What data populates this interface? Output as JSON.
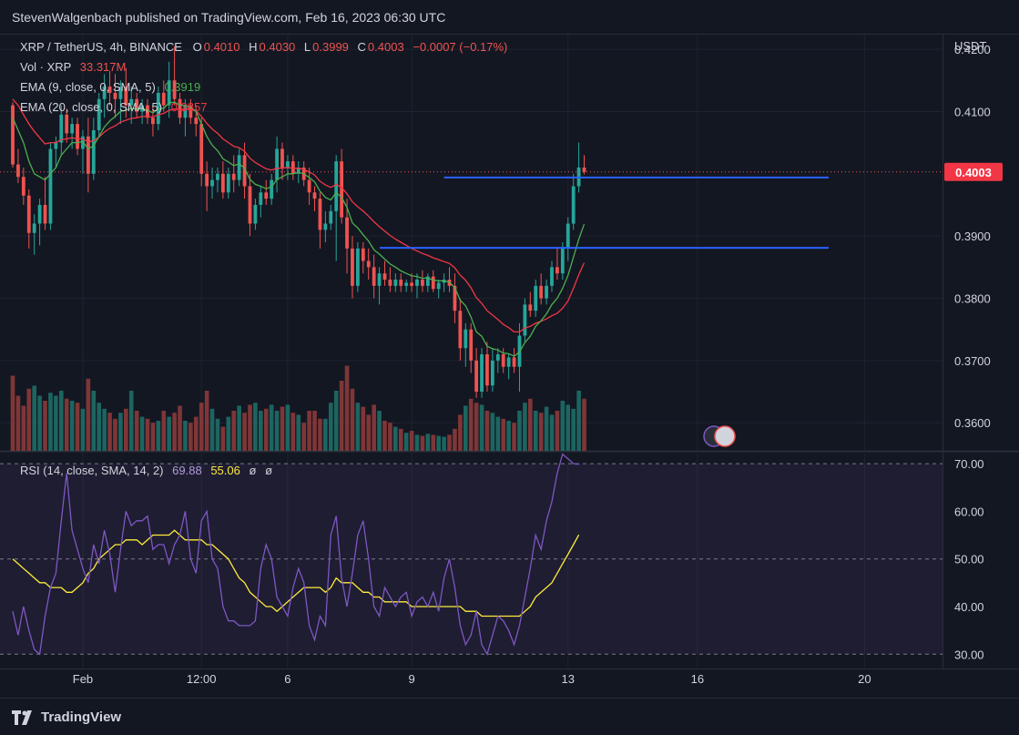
{
  "header": {
    "published": "StevenWalgenbach published on TradingView.com, Feb 16, 2023 06:30 UTC"
  },
  "legend": {
    "symbol": "XRP / TetherUS, 4h, BINANCE",
    "o_label": "O",
    "o": "0.4010",
    "h_label": "H",
    "h": "0.4030",
    "l_label": "L",
    "l": "0.3999",
    "c_label": "C",
    "c": "0.4003",
    "change": "−0.0007 (−0.17%)",
    "vol_label": "Vol · XRP",
    "vol": "33.317M",
    "ema9_label": "EMA (9, close, 0, SMA, 5)",
    "ema9": "0.3919",
    "ema20_label": "EMA (20, close, 0, SMA, 5)",
    "ema20": "0.3857",
    "rsi_label": "RSI (14, close, SMA, 14, 2)",
    "rsi": "69.88",
    "rsi_ma": "55.06",
    "rsi_x1": "ø",
    "rsi_x2": "ø"
  },
  "colors": {
    "up": "#26a69a",
    "down": "#ef5350",
    "ema9": "#4caf50",
    "ema20": "#f23645",
    "rsi": "#7e57c2",
    "rsi_ma": "#ffeb3b",
    "hline": "#2962ff",
    "bg": "#131722"
  },
  "footer": {
    "brand": "TradingView"
  },
  "chart_data": [
    {
      "type": "candlestick",
      "title": "XRP / TetherUS, 4h, BINANCE",
      "ylabel": "USDT",
      "ylim": [
        0.3555,
        0.4225
      ],
      "yticks": [
        "0.4200",
        "0.4100",
        "0.3900",
        "0.3800",
        "0.3700",
        "0.3600"
      ],
      "xticks": [
        "Feb",
        "12:00",
        "6",
        "9",
        "13",
        "16",
        "20"
      ],
      "last_price": "0.4003",
      "last_price_value": 0.4003,
      "support_resistance": [
        0.3994,
        0.3881
      ],
      "ohlc": [
        [
          0.411,
          0.4115,
          0.401,
          0.4015
        ],
        [
          0.4015,
          0.404,
          0.3985,
          0.3995
        ],
        [
          0.3995,
          0.401,
          0.395,
          0.3965
        ],
        [
          0.3965,
          0.3975,
          0.388,
          0.3905
        ],
        [
          0.3905,
          0.3935,
          0.387,
          0.392
        ],
        [
          0.392,
          0.396,
          0.3885,
          0.395
        ],
        [
          0.395,
          0.3995,
          0.391,
          0.392
        ],
        [
          0.392,
          0.405,
          0.391,
          0.404
        ],
        [
          0.404,
          0.406,
          0.401,
          0.405
        ],
        [
          0.405,
          0.411,
          0.403,
          0.4095
        ],
        [
          0.4095,
          0.4105,
          0.405,
          0.4065
        ],
        [
          0.4065,
          0.409,
          0.404,
          0.408
        ],
        [
          0.408,
          0.409,
          0.403,
          0.404
        ],
        [
          0.404,
          0.407,
          0.4,
          0.406
        ],
        [
          0.406,
          0.409,
          0.397,
          0.4
        ],
        [
          0.4,
          0.409,
          0.399,
          0.407
        ],
        [
          0.407,
          0.413,
          0.406,
          0.412
        ],
        [
          0.412,
          0.416,
          0.409,
          0.414
        ],
        [
          0.414,
          0.4165,
          0.411,
          0.413
        ],
        [
          0.413,
          0.416,
          0.409,
          0.412
        ],
        [
          0.412,
          0.415,
          0.408,
          0.414
        ],
        [
          0.414,
          0.417,
          0.409,
          0.411
        ],
        [
          0.411,
          0.414,
          0.408,
          0.412
        ],
        [
          0.412,
          0.413,
          0.409,
          0.41
        ],
        [
          0.41,
          0.412,
          0.408,
          0.411
        ],
        [
          0.411,
          0.412,
          0.408,
          0.409
        ],
        [
          0.409,
          0.411,
          0.406,
          0.408
        ],
        [
          0.408,
          0.414,
          0.407,
          0.413
        ],
        [
          0.413,
          0.415,
          0.41,
          0.411
        ],
        [
          0.411,
          0.418,
          0.409,
          0.415
        ],
        [
          0.415,
          0.4205,
          0.411,
          0.412
        ],
        [
          0.412,
          0.413,
          0.408,
          0.409
        ],
        [
          0.409,
          0.412,
          0.406,
          0.411
        ],
        [
          0.411,
          0.412,
          0.408,
          0.409
        ],
        [
          0.409,
          0.411,
          0.406,
          0.408
        ],
        [
          0.408,
          0.409,
          0.398,
          0.4
        ],
        [
          0.4,
          0.402,
          0.394,
          0.398
        ],
        [
          0.398,
          0.401,
          0.396,
          0.399
        ],
        [
          0.399,
          0.401,
          0.397,
          0.4
        ],
        [
          0.4,
          0.402,
          0.396,
          0.397
        ],
        [
          0.397,
          0.401,
          0.396,
          0.4
        ],
        [
          0.4,
          0.403,
          0.397,
          0.399
        ],
        [
          0.399,
          0.404,
          0.398,
          0.403
        ],
        [
          0.403,
          0.405,
          0.396,
          0.398
        ],
        [
          0.398,
          0.4,
          0.39,
          0.392
        ],
        [
          0.392,
          0.396,
          0.391,
          0.395
        ],
        [
          0.395,
          0.398,
          0.393,
          0.397
        ],
        [
          0.397,
          0.399,
          0.395,
          0.396
        ],
        [
          0.396,
          0.4,
          0.395,
          0.399
        ],
        [
          0.399,
          0.406,
          0.397,
          0.404
        ],
        [
          0.404,
          0.405,
          0.399,
          0.401
        ],
        [
          0.401,
          0.403,
          0.399,
          0.402
        ],
        [
          0.402,
          0.403,
          0.399,
          0.4
        ],
        [
          0.4,
          0.402,
          0.3985,
          0.401
        ],
        [
          0.401,
          0.402,
          0.398,
          0.399
        ],
        [
          0.399,
          0.401,
          0.395,
          0.397
        ],
        [
          0.397,
          0.398,
          0.394,
          0.396
        ],
        [
          0.396,
          0.397,
          0.388,
          0.391
        ],
        [
          0.391,
          0.394,
          0.389,
          0.392
        ],
        [
          0.392,
          0.395,
          0.391,
          0.394
        ],
        [
          0.394,
          0.403,
          0.386,
          0.402
        ],
        [
          0.402,
          0.404,
          0.392,
          0.393
        ],
        [
          0.393,
          0.396,
          0.384,
          0.388
        ],
        [
          0.388,
          0.39,
          0.38,
          0.382
        ],
        [
          0.382,
          0.389,
          0.381,
          0.388
        ],
        [
          0.388,
          0.389,
          0.384,
          0.386
        ],
        [
          0.386,
          0.388,
          0.383,
          0.385
        ],
        [
          0.385,
          0.387,
          0.38,
          0.382
        ],
        [
          0.382,
          0.385,
          0.379,
          0.384
        ],
        [
          0.384,
          0.386,
          0.382,
          0.383
        ],
        [
          0.383,
          0.385,
          0.381,
          0.382
        ],
        [
          0.382,
          0.384,
          0.381,
          0.383
        ],
        [
          0.383,
          0.384,
          0.381,
          0.382
        ],
        [
          0.382,
          0.383,
          0.381,
          0.3825
        ],
        [
          0.3825,
          0.384,
          0.381,
          0.382
        ],
        [
          0.382,
          0.384,
          0.38,
          0.383
        ],
        [
          0.383,
          0.3845,
          0.381,
          0.382
        ],
        [
          0.382,
          0.384,
          0.381,
          0.3835
        ],
        [
          0.3835,
          0.3845,
          0.381,
          0.3815
        ],
        [
          0.3815,
          0.383,
          0.38,
          0.3825
        ],
        [
          0.3825,
          0.384,
          0.381,
          0.383
        ],
        [
          0.383,
          0.385,
          0.381,
          0.382
        ],
        [
          0.382,
          0.384,
          0.376,
          0.378
        ],
        [
          0.378,
          0.38,
          0.37,
          0.372
        ],
        [
          0.372,
          0.376,
          0.369,
          0.375
        ],
        [
          0.375,
          0.376,
          0.368,
          0.37
        ],
        [
          0.37,
          0.372,
          0.364,
          0.365
        ],
        [
          0.365,
          0.372,
          0.364,
          0.371
        ],
        [
          0.371,
          0.373,
          0.365,
          0.366
        ],
        [
          0.366,
          0.372,
          0.365,
          0.37
        ],
        [
          0.37,
          0.372,
          0.368,
          0.371
        ],
        [
          0.371,
          0.372,
          0.368,
          0.369
        ],
        [
          0.369,
          0.371,
          0.367,
          0.3705
        ],
        [
          0.3705,
          0.372,
          0.368,
          0.369
        ],
        [
          0.369,
          0.376,
          0.365,
          0.374
        ],
        [
          0.374,
          0.38,
          0.373,
          0.379
        ],
        [
          0.379,
          0.381,
          0.377,
          0.378
        ],
        [
          0.378,
          0.383,
          0.377,
          0.382
        ],
        [
          0.382,
          0.384,
          0.379,
          0.38
        ],
        [
          0.38,
          0.383,
          0.379,
          0.382
        ],
        [
          0.382,
          0.386,
          0.381,
          0.385
        ],
        [
          0.385,
          0.388,
          0.383,
          0.384
        ],
        [
          0.384,
          0.389,
          0.383,
          0.388
        ],
        [
          0.388,
          0.393,
          0.386,
          0.392
        ],
        [
          0.392,
          0.4,
          0.391,
          0.398
        ],
        [
          0.398,
          0.405,
          0.397,
          0.401
        ],
        [
          0.401,
          0.403,
          0.3999,
          0.4003
        ]
      ],
      "ema9": [
        0.409,
        0.407,
        0.405,
        0.402,
        0.4,
        0.3995,
        0.399,
        0.4,
        0.401,
        0.403,
        0.404,
        0.405,
        0.405,
        0.4052,
        0.404,
        0.4045,
        0.406,
        0.4075,
        0.4085,
        0.4092,
        0.41,
        0.4102,
        0.4105,
        0.4104,
        0.4105,
        0.4102,
        0.4098,
        0.4104,
        0.4105,
        0.4114,
        0.4115,
        0.411,
        0.411,
        0.4106,
        0.41,
        0.408,
        0.406,
        0.4046,
        0.4037,
        0.4024,
        0.4019,
        0.4013,
        0.4016,
        0.4009,
        0.3991,
        0.3983,
        0.398,
        0.3976,
        0.3979,
        0.3991,
        0.3995,
        0.4,
        0.4,
        0.4002,
        0.4,
        0.3994,
        0.3987,
        0.3972,
        0.3962,
        0.3958,
        0.397,
        0.3962,
        0.3946,
        0.3921,
        0.3913,
        0.3902,
        0.3892,
        0.3878,
        0.3871,
        0.3863,
        0.3855,
        0.385,
        0.3844,
        0.384,
        0.3836,
        0.3835,
        0.3832,
        0.3833,
        0.3829,
        0.3828,
        0.3828,
        0.3826,
        0.3817,
        0.3797,
        0.3788,
        0.377,
        0.3746,
        0.3739,
        0.3723,
        0.3719,
        0.3717,
        0.3712,
        0.3711,
        0.3707,
        0.3714,
        0.3729,
        0.3739,
        0.3755,
        0.3764,
        0.3775,
        0.379,
        0.38,
        0.3816,
        0.3837,
        0.3866,
        0.3895,
        0.3919
      ],
      "ema20": [
        0.412,
        0.411,
        0.4095,
        0.408,
        0.4068,
        0.4058,
        0.4048,
        0.405,
        0.405,
        0.4055,
        0.4056,
        0.4058,
        0.4056,
        0.4056,
        0.4051,
        0.4053,
        0.4059,
        0.4067,
        0.4073,
        0.4077,
        0.4083,
        0.4086,
        0.4089,
        0.409,
        0.4092,
        0.4092,
        0.4091,
        0.4095,
        0.4097,
        0.4102,
        0.4104,
        0.4103,
        0.4104,
        0.4103,
        0.4101,
        0.4092,
        0.4081,
        0.4072,
        0.4065,
        0.4056,
        0.405,
        0.4044,
        0.4042,
        0.4036,
        0.4025,
        0.4018,
        0.4013,
        0.4008,
        0.4006,
        0.4009,
        0.4009,
        0.401,
        0.4009,
        0.4009,
        0.4007,
        0.4003,
        0.3998,
        0.3988,
        0.3982,
        0.3978,
        0.3983,
        0.3978,
        0.3968,
        0.3955,
        0.3947,
        0.394,
        0.3932,
        0.3923,
        0.3915,
        0.3908,
        0.3901,
        0.3895,
        0.389,
        0.3885,
        0.388,
        0.3876,
        0.3872,
        0.3869,
        0.3865,
        0.3862,
        0.3859,
        0.3856,
        0.3849,
        0.3837,
        0.3829,
        0.3817,
        0.3801,
        0.3792,
        0.378,
        0.3773,
        0.3766,
        0.3758,
        0.3753,
        0.3746,
        0.3746,
        0.3752,
        0.3755,
        0.376,
        0.3763,
        0.3767,
        0.3772,
        0.3776,
        0.3784,
        0.3796,
        0.3816,
        0.3838,
        0.3857
      ],
      "volume_relative": [
        0.75,
        0.55,
        0.45,
        0.62,
        0.65,
        0.55,
        0.5,
        0.58,
        0.55,
        0.6,
        0.52,
        0.5,
        0.48,
        0.42,
        0.72,
        0.6,
        0.48,
        0.42,
        0.38,
        0.32,
        0.38,
        0.42,
        0.6,
        0.4,
        0.34,
        0.32,
        0.28,
        0.3,
        0.4,
        0.34,
        0.38,
        0.45,
        0.3,
        0.28,
        0.34,
        0.48,
        0.6,
        0.42,
        0.32,
        0.24,
        0.34,
        0.4,
        0.45,
        0.38,
        0.46,
        0.48,
        0.4,
        0.42,
        0.46,
        0.4,
        0.44,
        0.46,
        0.38,
        0.36,
        0.28,
        0.4,
        0.4,
        0.32,
        0.32,
        0.48,
        0.6,
        0.7,
        0.85,
        0.62,
        0.48,
        0.44,
        0.36,
        0.46,
        0.4,
        0.3,
        0.28,
        0.24,
        0.22,
        0.18,
        0.2,
        0.16,
        0.15,
        0.17,
        0.16,
        0.15,
        0.14,
        0.16,
        0.22,
        0.36,
        0.45,
        0.52,
        0.48,
        0.46,
        0.4,
        0.38,
        0.34,
        0.32,
        0.3,
        0.28,
        0.4,
        0.48,
        0.52,
        0.4,
        0.38,
        0.44,
        0.36,
        0.4,
        0.5,
        0.46,
        0.42,
        0.6,
        0.52
      ]
    },
    {
      "type": "line",
      "title": "RSI (14, close, SMA, 14, 2)",
      "ylim": [
        27,
        72.5
      ],
      "yticks": [
        "70.00",
        "60.00",
        "50.00",
        "40.00",
        "30.00"
      ],
      "bands": [
        70,
        50,
        30
      ],
      "rsi": [
        39,
        34,
        40,
        35,
        31,
        30,
        38,
        44,
        47,
        58,
        68,
        56,
        52,
        48,
        45,
        53,
        49,
        56,
        51,
        43,
        52,
        60,
        57,
        58,
        58,
        59,
        52,
        53,
        53,
        49,
        53,
        55,
        60,
        50,
        47,
        58,
        60,
        50,
        48,
        40,
        37,
        37,
        36,
        36,
        36,
        37,
        48,
        53,
        50,
        42,
        40,
        38,
        44,
        48,
        45,
        36,
        33,
        38,
        36,
        55,
        59,
        46,
        40,
        47,
        55,
        58,
        50,
        40,
        38,
        44,
        42,
        40,
        42,
        43,
        38,
        41,
        42,
        40,
        43,
        39,
        46,
        50,
        44,
        36,
        32,
        34,
        39,
        32,
        30,
        34,
        38,
        37,
        35,
        32,
        36,
        42,
        48,
        55,
        52,
        58,
        62,
        68,
        72,
        71,
        70,
        69.88
      ],
      "rsi_ma": [
        50,
        49,
        48,
        47,
        46,
        45,
        45,
        44,
        44,
        44,
        43,
        43,
        44,
        45,
        47,
        48,
        50,
        51,
        52,
        53,
        53,
        54,
        54,
        54,
        53,
        54,
        55,
        55,
        55,
        55,
        56,
        55,
        54,
        54,
        54,
        54,
        53,
        53,
        52,
        51,
        50,
        48,
        46,
        45,
        43,
        42,
        41,
        40,
        40,
        39,
        40,
        41,
        42,
        43,
        44,
        44,
        44,
        44,
        43,
        44,
        46,
        45,
        45,
        45,
        44,
        43,
        43,
        42,
        42,
        41,
        41,
        41,
        41,
        41,
        40,
        40,
        40,
        40,
        40,
        40,
        40,
        40,
        40,
        40,
        39,
        39,
        39,
        38,
        38,
        38,
        38,
        38,
        38,
        38,
        38,
        39,
        40,
        42,
        43,
        44,
        45,
        47,
        49,
        51,
        53,
        55.06
      ]
    }
  ]
}
